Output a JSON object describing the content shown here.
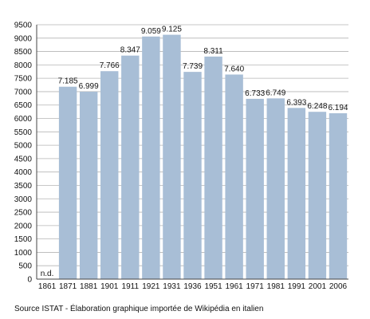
{
  "chart_data": {
    "type": "bar",
    "categories": [
      "1861",
      "1871",
      "1881",
      "1901",
      "1911",
      "1921",
      "1931",
      "1936",
      "1951",
      "1961",
      "1971",
      "1981",
      "1991",
      "2001",
      "2006"
    ],
    "values": [
      null,
      7185,
      6999,
      7766,
      8347,
      9059,
      9125,
      7739,
      8311,
      7640,
      6733,
      6749,
      6393,
      6248,
      6194
    ],
    "data_labels": [
      "n.d.",
      "7.185",
      "6.999",
      "7.766",
      "8.347",
      "9.059",
      "9.125",
      "7.739",
      "8.311",
      "7.640",
      "6.733",
      "6.749",
      "6.393",
      "6.248",
      "6.194"
    ],
    "y_ticks": [
      "0",
      "500",
      "1000",
      "1500",
      "2000",
      "2500",
      "3000",
      "3500",
      "4000",
      "4500",
      "5000",
      "5500",
      "6000",
      "6500",
      "7000",
      "7500",
      "8000",
      "8500",
      "9000",
      "9500"
    ],
    "ylim": [
      0,
      9500
    ],
    "grid": true,
    "bar_color": "#a8bed6",
    "title": "",
    "xlabel": "",
    "ylabel": ""
  },
  "caption": "Source ISTAT - Élaboration graphique importée de Wikipédia en italien"
}
